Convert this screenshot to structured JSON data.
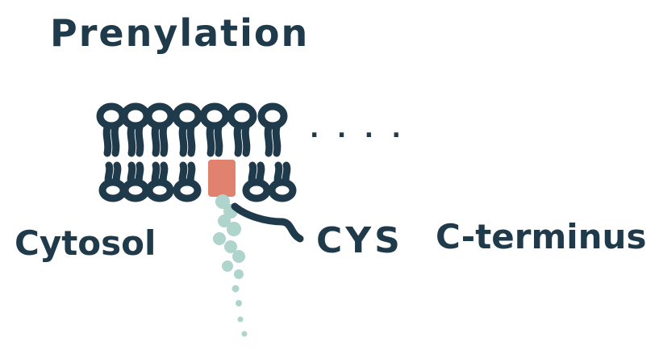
{
  "title": "Prenylation",
  "labels": {
    "cytosol": "Cytosol",
    "cys": "CYS",
    "c_terminus": "C-terminus"
  },
  "continuation_marks": ". . . .",
  "colors": {
    "ink": "#1f3a4a",
    "cys_block": "#e0826d",
    "peptide_chain": "#aed4cc",
    "background": "#ffffff"
  }
}
